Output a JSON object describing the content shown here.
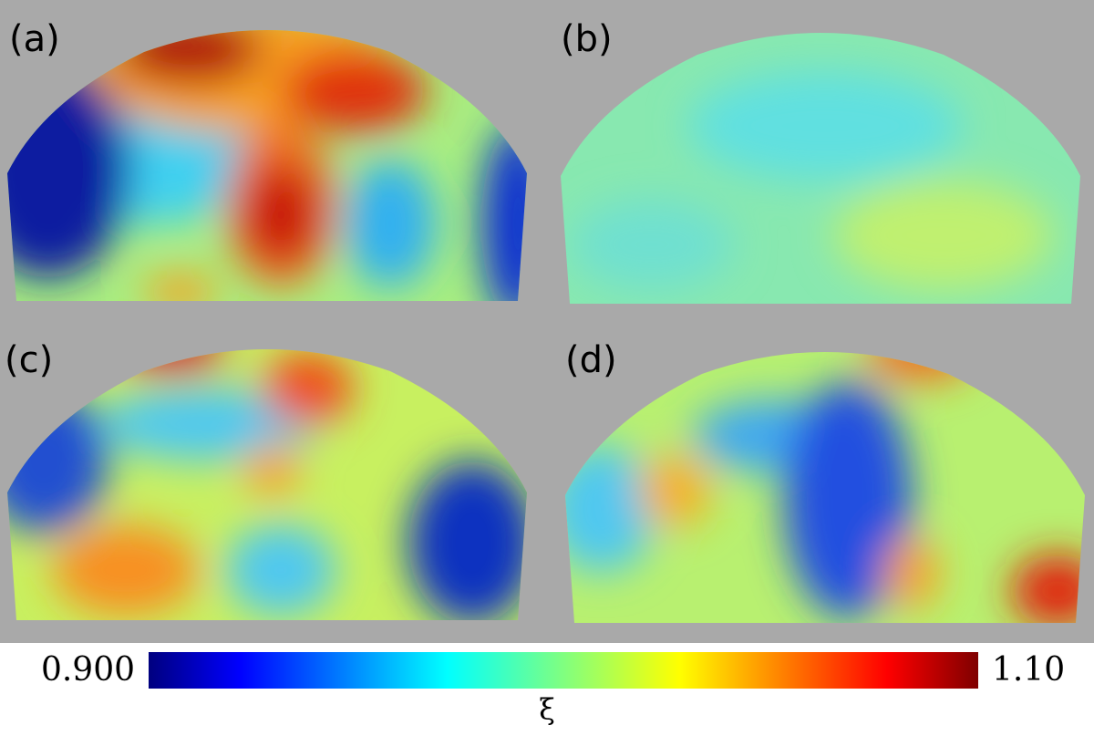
{
  "panels": [
    {
      "label": "(a)"
    },
    {
      "label": "(b)"
    },
    {
      "label": "(c)"
    },
    {
      "label": "(d)"
    }
  ],
  "colorbar": {
    "label": "ξ",
    "range": [
      0.9,
      1.1
    ],
    "ticks": [
      {
        "value": 0.9,
        "label": "0.900"
      },
      {
        "value": 1.1,
        "label": "1.10"
      }
    ],
    "colormap": "jet"
  }
}
